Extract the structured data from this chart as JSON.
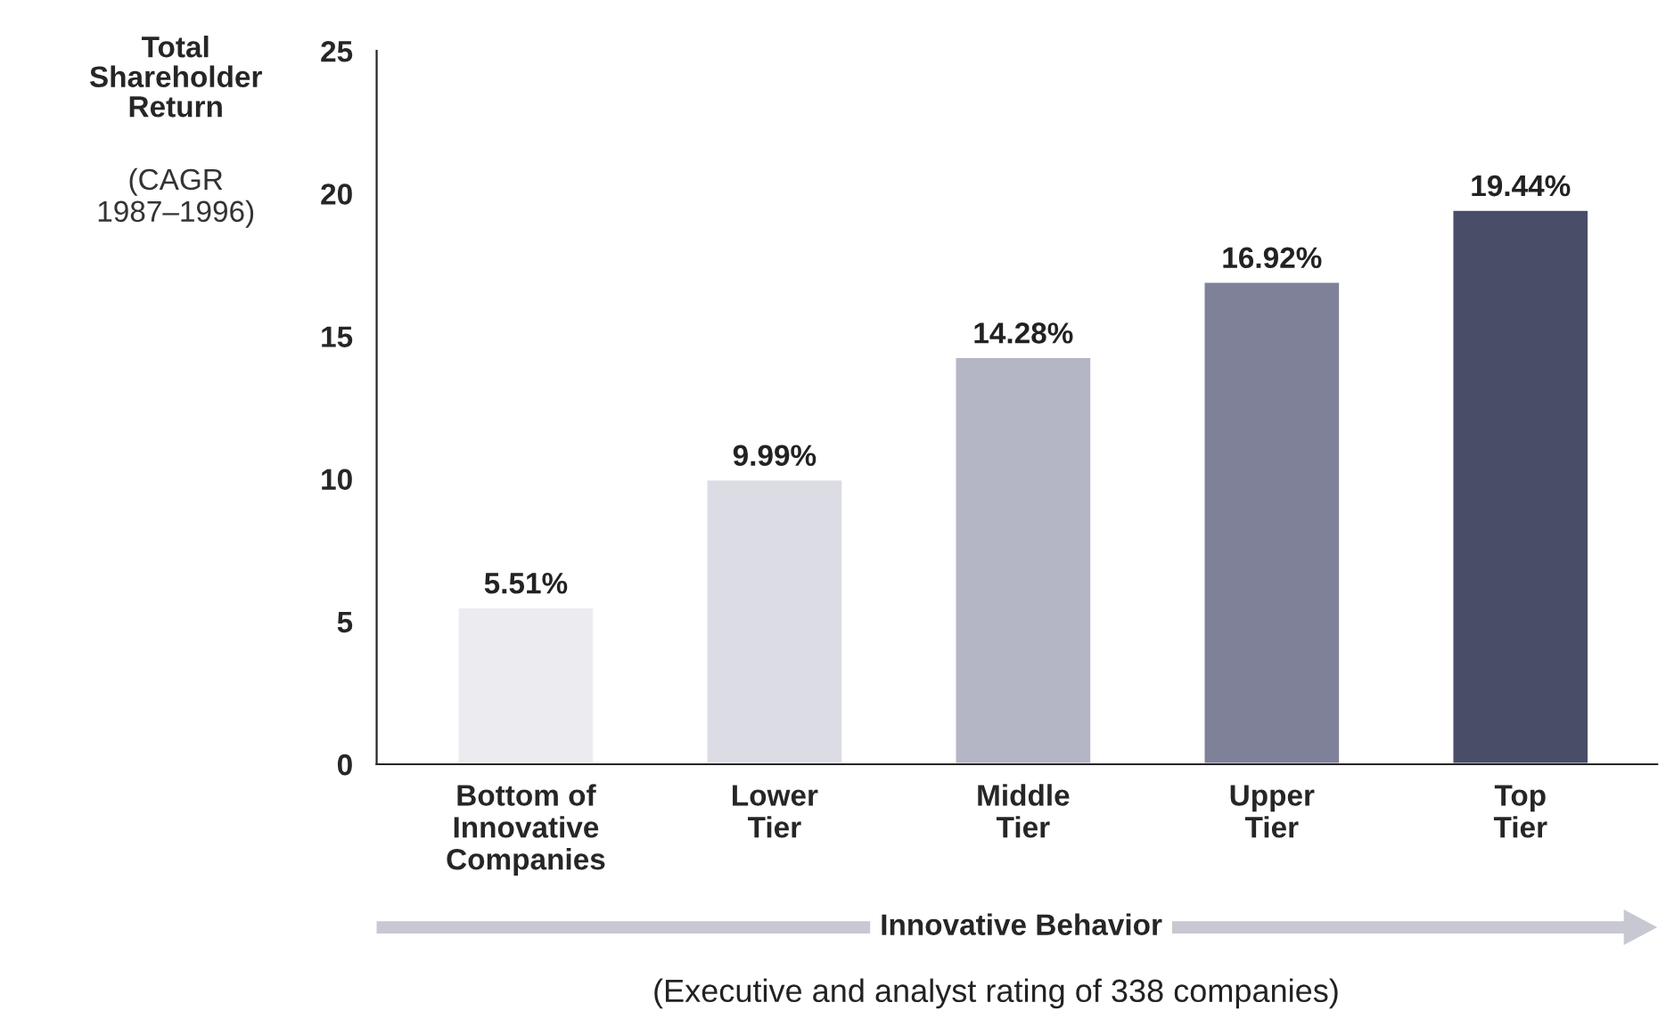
{
  "chart_data": {
    "type": "bar",
    "ylabel": "Total\nShareholder\nReturn",
    "xlabel": "Innovative Behavior",
    "categories": [
      "Bottom of\nInnovative\nCompanies",
      "Lower\nTier",
      "Middle\nTier",
      "Upper\nTier",
      "Top\nTier"
    ],
    "values": [
      5.51,
      9.99,
      14.28,
      16.92,
      19.44
    ],
    "colors": [
      "#ecebf0",
      "#dcdce4",
      "#b4b5c5",
      "#7f8199",
      "#4a4d68"
    ],
    "value_labels": [
      "5.51%",
      "9.99%",
      "14.28%",
      "16.92%",
      "19.44%"
    ],
    "ylim": [
      0,
      25
    ],
    "yticks": [
      0,
      5,
      10,
      15,
      20,
      25
    ],
    "annotations": [
      "(CAGR\n1987–1996)",
      "(Executive and analyst rating of 338 companies)"
    ],
    "grid": false,
    "legend": false
  }
}
